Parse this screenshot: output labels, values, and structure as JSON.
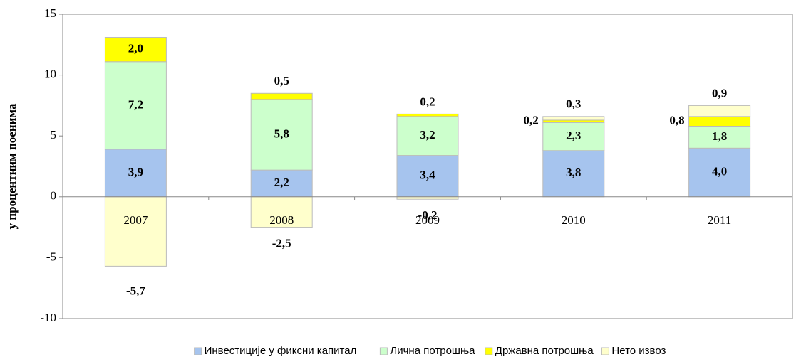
{
  "chart_data": {
    "type": "stacked_bar",
    "y_label": "у процентним поенима",
    "categories": [
      "2007",
      "2008",
      "2009",
      "2010",
      "2011"
    ],
    "series": [
      {
        "name": "Инвестиције у фиксни капитал",
        "color": "#a6c4ee",
        "values": [
          3.9,
          2.2,
          3.4,
          3.8,
          4.0
        ],
        "value_labels": [
          "3,9",
          "2,2",
          "3,4",
          "3,8",
          "4,0"
        ]
      },
      {
        "name": "Лична потрошња",
        "color": "#ccffcc",
        "values": [
          7.2,
          5.8,
          3.2,
          2.3,
          1.8
        ],
        "value_labels": [
          "7,2",
          "5,8",
          "3,2",
          "2,3",
          "1,8"
        ]
      },
      {
        "name": "Државна потрошња",
        "color": "#ffff00",
        "values": [
          2.0,
          0.5,
          0.2,
          0.2,
          0.8
        ],
        "value_labels": [
          "2,0",
          "0,5",
          "0,2",
          "0,2",
          "0,8"
        ]
      },
      {
        "name": "Нето извоз",
        "color": "#ffffcc",
        "values": [
          -5.7,
          -2.5,
          -0.2,
          0.3,
          0.9
        ],
        "value_labels": [
          "-5,7",
          "-2,5",
          "-0,2",
          "0,3",
          "0,9"
        ]
      }
    ],
    "ylim": [
      -10,
      15
    ],
    "yticks": [
      -10,
      -5,
      0,
      5,
      10,
      15
    ],
    "legend": "bottom"
  }
}
